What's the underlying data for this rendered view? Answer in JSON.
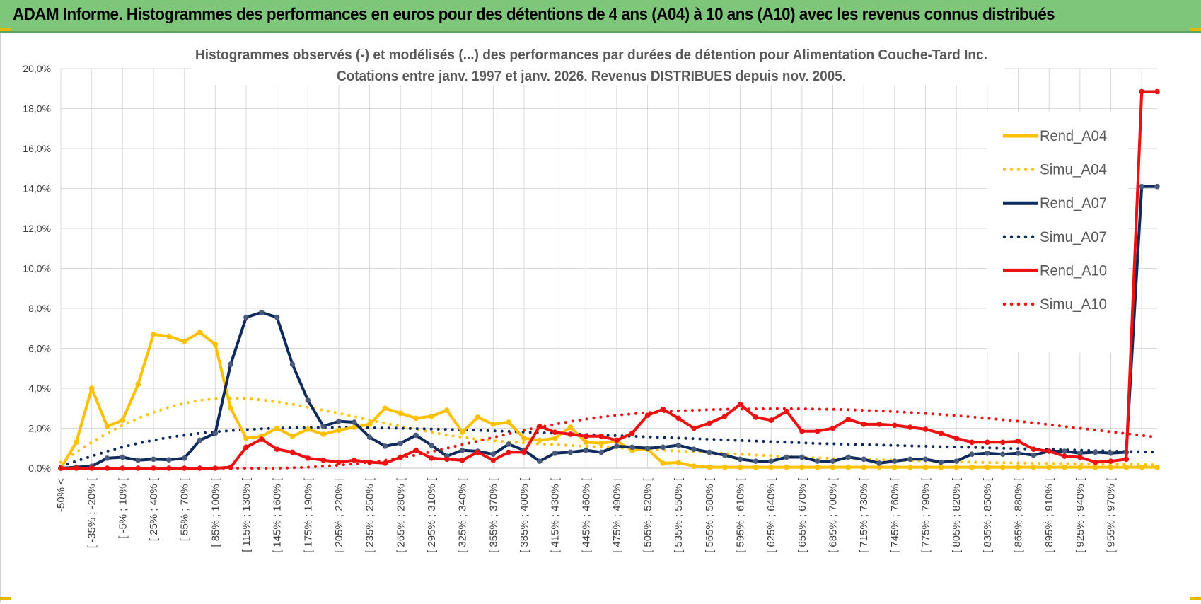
{
  "banner": {
    "title": "ADAM Informe. Histogrammes des performances en euros pour des détentions de 4 ans (A04) à 10 ans (A10) avec les revenus connus distribués"
  },
  "colors": {
    "banner_bg": "#7dc67a",
    "a04": "#ffc000",
    "a07": "#0f2a5c",
    "a07_marker": "#4a5a7a",
    "a10": "#ee1111",
    "grid": "#d9d9d9",
    "text": "#404040"
  },
  "chart_data": {
    "type": "line",
    "title": "Histogrammes observés (-) et modélisés (...) des performances par durées de détention pour Alimentation Couche-Tard Inc.",
    "subtitle": "Cotations entre janv. 1997 et janv. 2026. Revenus DISTRIBUES depuis nov. 2005.",
    "ylim": [
      0,
      20
    ],
    "yticks": [
      "0,0%",
      "2,0%",
      "4,0%",
      "6,0%",
      "8,0%",
      "10,0%",
      "12,0%",
      "14,0%",
      "16,0%",
      "18,0%",
      "20,0%"
    ],
    "n_points": 72,
    "x_tick_labels": [
      "-50% <",
      "[ -35% ; -20% [",
      "[ -5% ; 10% [",
      "[ 25% ; 40% [",
      "[ 55% ; 70% [",
      "[ 85% ; 100% [",
      "[ 115% ; 130% [",
      "[ 145% ; 160% [",
      "[ 175% ; 190% [",
      "[ 205% ; 220% [",
      "[ 235% ; 250% [",
      "[ 265% ; 280% [",
      "[ 295% ; 310% [",
      "[ 325% ; 340% [",
      "[ 355% ; 370% [",
      "[ 385% ; 400% [",
      "[ 415% ; 430% [",
      "[ 445% ; 460% [",
      "[ 475% ; 490% [",
      "[ 505% ; 520% [",
      "[ 535% ; 550% [",
      "[ 565% ; 580% [",
      "[ 595% ; 610% [",
      "[ 625% ; 640% [",
      "[ 655% ; 670% [",
      "[ 685% ; 700% [",
      "[ 715% ; 730% [",
      "[ 745% ; 760% [",
      "[ 775% ; 790% [",
      "[ 805% ; 820% [",
      "[ 835% ; 850% [",
      "[ 865% ; 880% [",
      "[ 895% ; 910% [",
      "[ 925% ; 940% [",
      "[ 955% ; 970% ["
    ],
    "legend_position": "right",
    "series": [
      {
        "name": "Rend_A04",
        "style": "solid",
        "color": "#ffc000",
        "values": [
          0,
          1.3,
          4.0,
          2.1,
          2.4,
          4.2,
          6.7,
          6.6,
          6.35,
          6.8,
          6.2,
          3.0,
          1.5,
          1.6,
          2.0,
          1.6,
          1.95,
          1.7,
          1.9,
          2.05,
          2.2,
          3.0,
          2.75,
          2.5,
          2.6,
          2.9,
          1.8,
          2.55,
          2.2,
          2.3,
          1.5,
          1.4,
          1.5,
          2.05,
          1.3,
          1.25,
          1.35,
          0.9,
          0.95,
          0.25,
          0.28,
          0.1,
          0.05,
          0.05,
          0.05,
          0.05,
          0.05,
          0.05,
          0.05,
          0.05,
          0.05,
          0.05,
          0.05,
          0.05,
          0.05,
          0.05,
          0.05,
          0.05,
          0.05,
          0.05,
          0.05,
          0.05,
          0.05,
          0.05,
          0.05,
          0.05,
          0.05,
          0.05,
          0.05,
          0.05,
          0.05,
          0.05
        ]
      },
      {
        "name": "Simu_A04",
        "style": "dotted",
        "color": "#ffc000",
        "values": [
          0.3,
          0.8,
          1.3,
          1.75,
          2.15,
          2.5,
          2.8,
          3.05,
          3.25,
          3.4,
          3.48,
          3.5,
          3.48,
          3.42,
          3.32,
          3.2,
          3.05,
          2.9,
          2.75,
          2.58,
          2.4,
          2.25,
          2.1,
          1.95,
          1.8,
          1.66,
          1.55,
          1.45,
          1.38,
          1.32,
          1.27,
          1.22,
          1.18,
          1.14,
          1.1,
          1.06,
          1.02,
          0.98,
          0.94,
          0.9,
          0.86,
          0.82,
          0.78,
          0.74,
          0.7,
          0.66,
          0.62,
          0.58,
          0.55,
          0.52,
          0.49,
          0.46,
          0.44,
          0.42,
          0.4,
          0.38,
          0.36,
          0.34,
          0.32,
          0.3,
          0.28,
          0.27,
          0.26,
          0.25,
          0.24,
          0.23,
          0.22,
          0.21,
          0.2,
          0.19,
          0.18,
          0.17
        ]
      },
      {
        "name": "Rend_A07",
        "style": "solid",
        "color": "#0f2a5c",
        "values": [
          0,
          0.05,
          0.1,
          0.5,
          0.55,
          0.4,
          0.45,
          0.42,
          0.5,
          1.4,
          1.75,
          5.2,
          7.55,
          7.8,
          7.55,
          5.2,
          3.4,
          2.1,
          2.35,
          2.3,
          1.55,
          1.1,
          1.25,
          1.65,
          1.15,
          0.6,
          0.9,
          0.85,
          0.7,
          1.2,
          0.9,
          0.35,
          0.75,
          0.8,
          0.9,
          0.8,
          1.1,
          1.05,
          1.0,
          1.05,
          1.15,
          0.95,
          0.8,
          0.65,
          0.45,
          0.35,
          0.35,
          0.55,
          0.55,
          0.35,
          0.35,
          0.55,
          0.45,
          0.25,
          0.35,
          0.45,
          0.45,
          0.3,
          0.35,
          0.7,
          0.75,
          0.7,
          0.75,
          0.65,
          0.85,
          0.85,
          0.75,
          0.8,
          0.75,
          0.8,
          14.1,
          14.1
        ]
      },
      {
        "name": "Simu_A07",
        "style": "dotted",
        "color": "#0f2a5c",
        "values": [
          0.1,
          0.35,
          0.6,
          0.85,
          1.05,
          1.25,
          1.4,
          1.55,
          1.65,
          1.75,
          1.82,
          1.88,
          1.93,
          1.97,
          2.0,
          2.02,
          2.03,
          2.04,
          2.04,
          2.03,
          2.02,
          2.01,
          2.0,
          1.98,
          1.96,
          1.94,
          1.92,
          1.9,
          1.87,
          1.84,
          1.81,
          1.78,
          1.75,
          1.72,
          1.69,
          1.66,
          1.63,
          1.6,
          1.57,
          1.54,
          1.51,
          1.48,
          1.45,
          1.42,
          1.39,
          1.36,
          1.33,
          1.3,
          1.27,
          1.24,
          1.22,
          1.2,
          1.18,
          1.16,
          1.14,
          1.12,
          1.1,
          1.08,
          1.06,
          1.04,
          1.02,
          1.0,
          0.98,
          0.96,
          0.94,
          0.92,
          0.9,
          0.88,
          0.86,
          0.84,
          0.82,
          0.8
        ]
      },
      {
        "name": "Rend_A10",
        "style": "solid",
        "color": "#ee1111",
        "values": [
          0,
          0,
          0,
          0,
          0,
          0,
          0,
          0,
          0,
          0,
          0,
          0.05,
          1.05,
          1.45,
          0.95,
          0.8,
          0.5,
          0.4,
          0.3,
          0.4,
          0.3,
          0.25,
          0.55,
          0.9,
          0.5,
          0.45,
          0.4,
          0.8,
          0.4,
          0.8,
          0.8,
          2.1,
          1.8,
          1.7,
          1.6,
          1.6,
          1.4,
          1.75,
          2.65,
          2.95,
          2.5,
          2.0,
          2.25,
          2.6,
          3.2,
          2.55,
          2.4,
          2.85,
          1.85,
          1.85,
          2.0,
          2.45,
          2.2,
          2.2,
          2.15,
          2.05,
          1.95,
          1.75,
          1.5,
          1.3,
          1.3,
          1.3,
          1.35,
          0.95,
          0.85,
          0.6,
          0.55,
          0.3,
          0.35,
          0.45,
          18.85,
          18.85
        ]
      },
      {
        "name": "Simu_A10",
        "style": "dotted",
        "color": "#ee1111",
        "values": [
          0,
          0,
          0,
          0,
          0,
          0,
          0,
          0,
          0,
          0,
          0,
          0,
          0,
          0,
          0,
          0.02,
          0.05,
          0.1,
          0.15,
          0.22,
          0.3,
          0.4,
          0.52,
          0.66,
          0.82,
          1.0,
          1.18,
          1.36,
          1.54,
          1.72,
          1.9,
          2.06,
          2.2,
          2.34,
          2.46,
          2.56,
          2.65,
          2.72,
          2.78,
          2.83,
          2.87,
          2.9,
          2.93,
          2.95,
          2.96,
          2.97,
          2.98,
          2.98,
          2.97,
          2.96,
          2.95,
          2.93,
          2.9,
          2.87,
          2.83,
          2.79,
          2.74,
          2.69,
          2.63,
          2.57,
          2.5,
          2.43,
          2.35,
          2.27,
          2.18,
          2.09,
          2.0,
          1.91,
          1.82,
          1.73,
          1.64,
          1.55
        ]
      }
    ]
  }
}
